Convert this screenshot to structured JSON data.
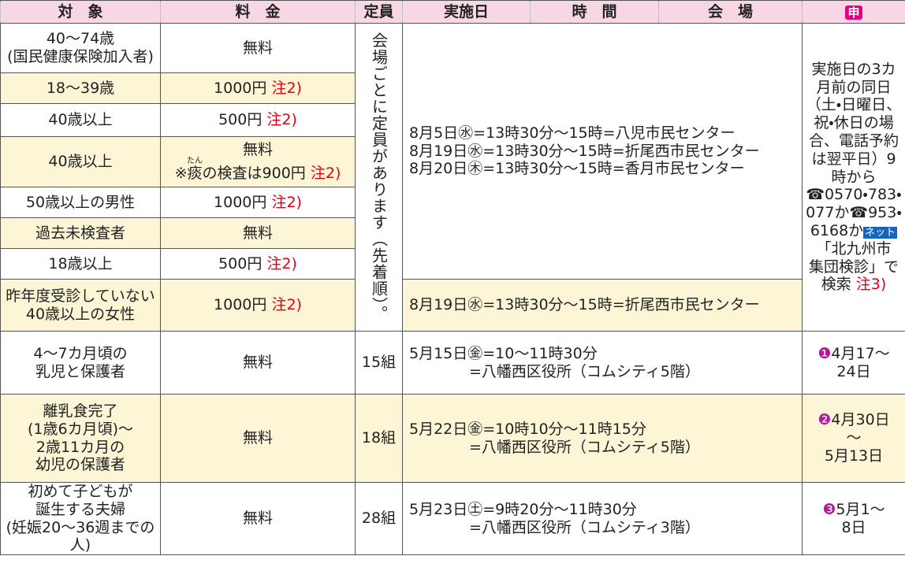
{
  "header": {
    "target": "対　象",
    "fee": "料　金",
    "capacity": "定員",
    "date": "実施日",
    "time": "時　間",
    "venue": "会　場",
    "apply": "申"
  },
  "group1": {
    "capacity": "会場ごとに定員があります（先着順）。",
    "schedule": "8月5日㊌=13時30分～15時=八児市民センター\n8月19日㊌=13時30分～15時=折尾西市民センター\n8月20日㊍=13時30分～15時=香月市民センター",
    "last_schedule": "8月19日㊌=13時30分～15時=折尾西市民センター",
    "apply": {
      "text": "実施日の3カ月前の同日（土・日曜日、祝・休日の場合、電話予約は翌平日）9時から☎0570・783・077か☎953・6168か",
      "badge": "ネット",
      "text2": "「北九州市　集団検診」で検索",
      "note": "注3)"
    },
    "rows": [
      {
        "target": "40～74歳\n(国民健康保険加入者)",
        "fee": "無料"
      },
      {
        "target": "18～39歳",
        "fee": "1000円",
        "note": "注2)",
        "highlight": true
      },
      {
        "target": "40歳以上",
        "fee": "500円",
        "note": "注2)"
      },
      {
        "target": "40歳以上",
        "fee": "無料",
        "fee_sub": {
          "pre": "※",
          "ruby": "痰",
          "rt": "たん",
          "post": "の検査は900円"
        },
        "note": "注2)",
        "highlight": true
      },
      {
        "target": "50歳以上の男性",
        "fee": "1000円",
        "note": "注2)"
      },
      {
        "target": "過去未検査者",
        "fee": "無料",
        "highlight": true
      },
      {
        "target": "18歳以上",
        "fee": "500円",
        "note": "注2)"
      },
      {
        "target": "昨年度受診していない\n40歳以上の女性",
        "fee": "1000円",
        "note": "注2)",
        "highlight": true
      }
    ]
  },
  "group2": [
    {
      "target": "4～7カ月頃の\n乳児と保護者",
      "fee": "無料",
      "capacity": "15組",
      "schedule": "5月15日㊎=10～11時30分\n　　　　=八幡西区役所（コムシティ5階）",
      "apply": {
        "mark": "❶",
        "text": "4月17～\n24日"
      }
    },
    {
      "target": "離乳食完了\n(1歳6カ月頃)～\n2歳11カ月の\n幼児の保護者",
      "fee": "無料",
      "capacity": "18組",
      "schedule": "5月22日㊎=10時10分～11時15分\n　　　　=八幡西区役所（コムシティ5階）",
      "apply": {
        "mark": "❷",
        "text": "4月30日\n～\n5月13日"
      },
      "highlight": true
    },
    {
      "target": "初めて子どもが\n誕生する夫婦\n(妊娠20～36週までの人)",
      "fee": "無料",
      "capacity": "28組",
      "schedule": "5月23日㊏=9時20分～11時30分\n　　　　=八幡西区役所（コムシティ3階）",
      "apply": {
        "mark": "❸",
        "text": "5月1～\n8日"
      }
    }
  ]
}
